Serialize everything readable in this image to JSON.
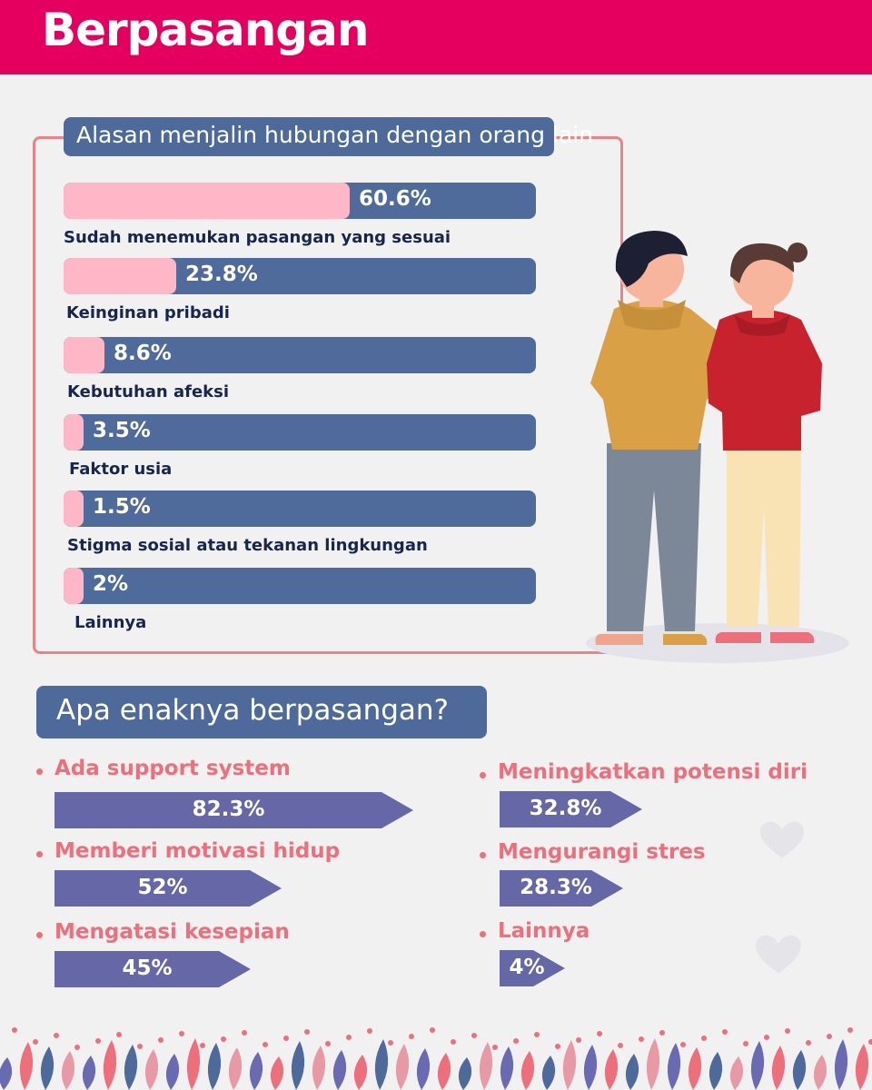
{
  "header": {
    "title": "Berpasangan"
  },
  "colors": {
    "header": "#e5005f",
    "navy": "#4f6b9b",
    "pink": "#ffb6c6",
    "coral": "#ec6f7b",
    "purple": "#6567a6"
  },
  "chart_data": [
    {
      "type": "bar",
      "title": "Alasan menjalin hubungan dengan orang lain",
      "categories": [
        "Sudah menemukan pasangan yang sesuai",
        "Keinginan pribadi",
        "Kebutuhan afeksi",
        "Faktor usia",
        "Stigma sosial atau tekanan lingkungan",
        "Lainnya"
      ],
      "values": [
        60.6,
        23.8,
        8.6,
        3.5,
        1.5,
        2
      ],
      "value_labels": [
        "60.6%",
        "23.8%",
        "8.6%",
        "3.5%",
        "1.5%",
        "2%"
      ],
      "unit": "%"
    },
    {
      "type": "bar",
      "title": "Apa enaknya berpasangan?",
      "categories": [
        "Ada support system",
        "Memberi motivasi hidup",
        "Mengatasi kesepian",
        "Meningkatkan potensi diri",
        "Mengurangi stres",
        "Lainnya"
      ],
      "values": [
        82.3,
        52,
        45,
        32.8,
        28.3,
        4
      ],
      "value_labels": [
        "82.3%",
        "52%",
        "45%",
        "32.8%",
        "28.3%",
        "4%"
      ],
      "unit": "%"
    }
  ],
  "illustration": {
    "name": "couple-illustration"
  }
}
